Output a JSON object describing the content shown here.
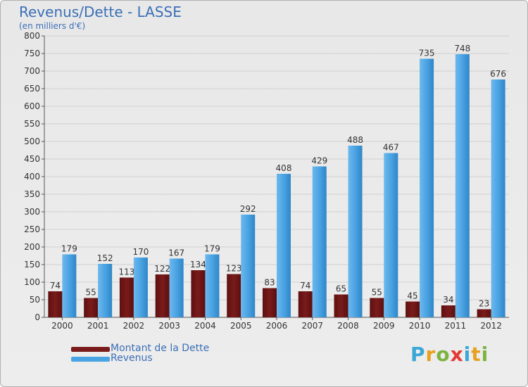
{
  "header": {
    "title": "Revenus/Dette - LASSE",
    "subtitle": "(en milliers d'€)"
  },
  "legend": {
    "dette_label": "Montant de la Dette",
    "revenus_label": "Revenus"
  },
  "logo": {
    "letters": [
      "P",
      "r",
      "o",
      "x",
      "i",
      "t",
      "i"
    ],
    "colors": [
      "#3aa7d6",
      "#e8a020",
      "#7cb342",
      "#e53935",
      "#3aa7d6",
      "#e8a020",
      "#7cb342"
    ]
  },
  "colors": {
    "dette": "#7a1b1b",
    "revenus": "#4aa3e2",
    "text": "#333333",
    "grid": "#d0d0d0"
  },
  "chart_data": {
    "type": "bar",
    "title": "Revenus/Dette - LASSE",
    "ylabel": "(en milliers d'€)",
    "ylim": [
      0,
      800
    ],
    "yticks": [
      0,
      50,
      100,
      150,
      200,
      250,
      300,
      350,
      400,
      450,
      500,
      550,
      600,
      650,
      700,
      750,
      800
    ],
    "categories": [
      "2000",
      "2001",
      "2002",
      "2003",
      "2004",
      "2005",
      "2006",
      "2007",
      "2008",
      "2009",
      "2010",
      "2011",
      "2012"
    ],
    "series": [
      {
        "name": "Montant de la Dette",
        "values": [
          74,
          55,
          113,
          122,
          134,
          123,
          83,
          74,
          65,
          55,
          45,
          34,
          23
        ]
      },
      {
        "name": "Revenus",
        "values": [
          179,
          152,
          170,
          167,
          179,
          292,
          408,
          429,
          488,
          467,
          735,
          748,
          676
        ]
      }
    ]
  }
}
